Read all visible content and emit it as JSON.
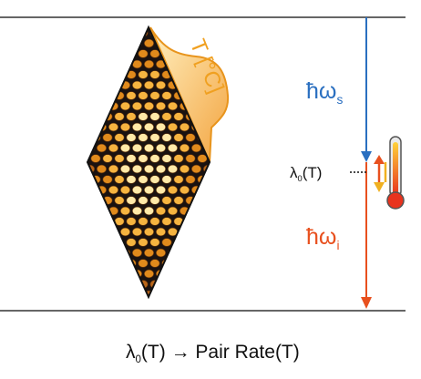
{
  "temperature_label": "T [°C]",
  "signal_label": {
    "base": "ħω",
    "sub": "s"
  },
  "idler_label": {
    "base": "ħω",
    "sub": "i"
  },
  "pump_label": {
    "pre": "λ",
    "sub": "0",
    "post": "(T)"
  },
  "caption": {
    "pre": "λ",
    "sub": "0",
    "post": "(T) → Pair Rate(T)"
  },
  "colors": {
    "signal": "#2a6fc0",
    "idler": "#e8501e",
    "temperature": "#f0a020",
    "crystal_dark": "#1a1210",
    "lattice": "#e8941c"
  },
  "icons": [
    "thermometer-icon",
    "double-arrow-icon"
  ]
}
